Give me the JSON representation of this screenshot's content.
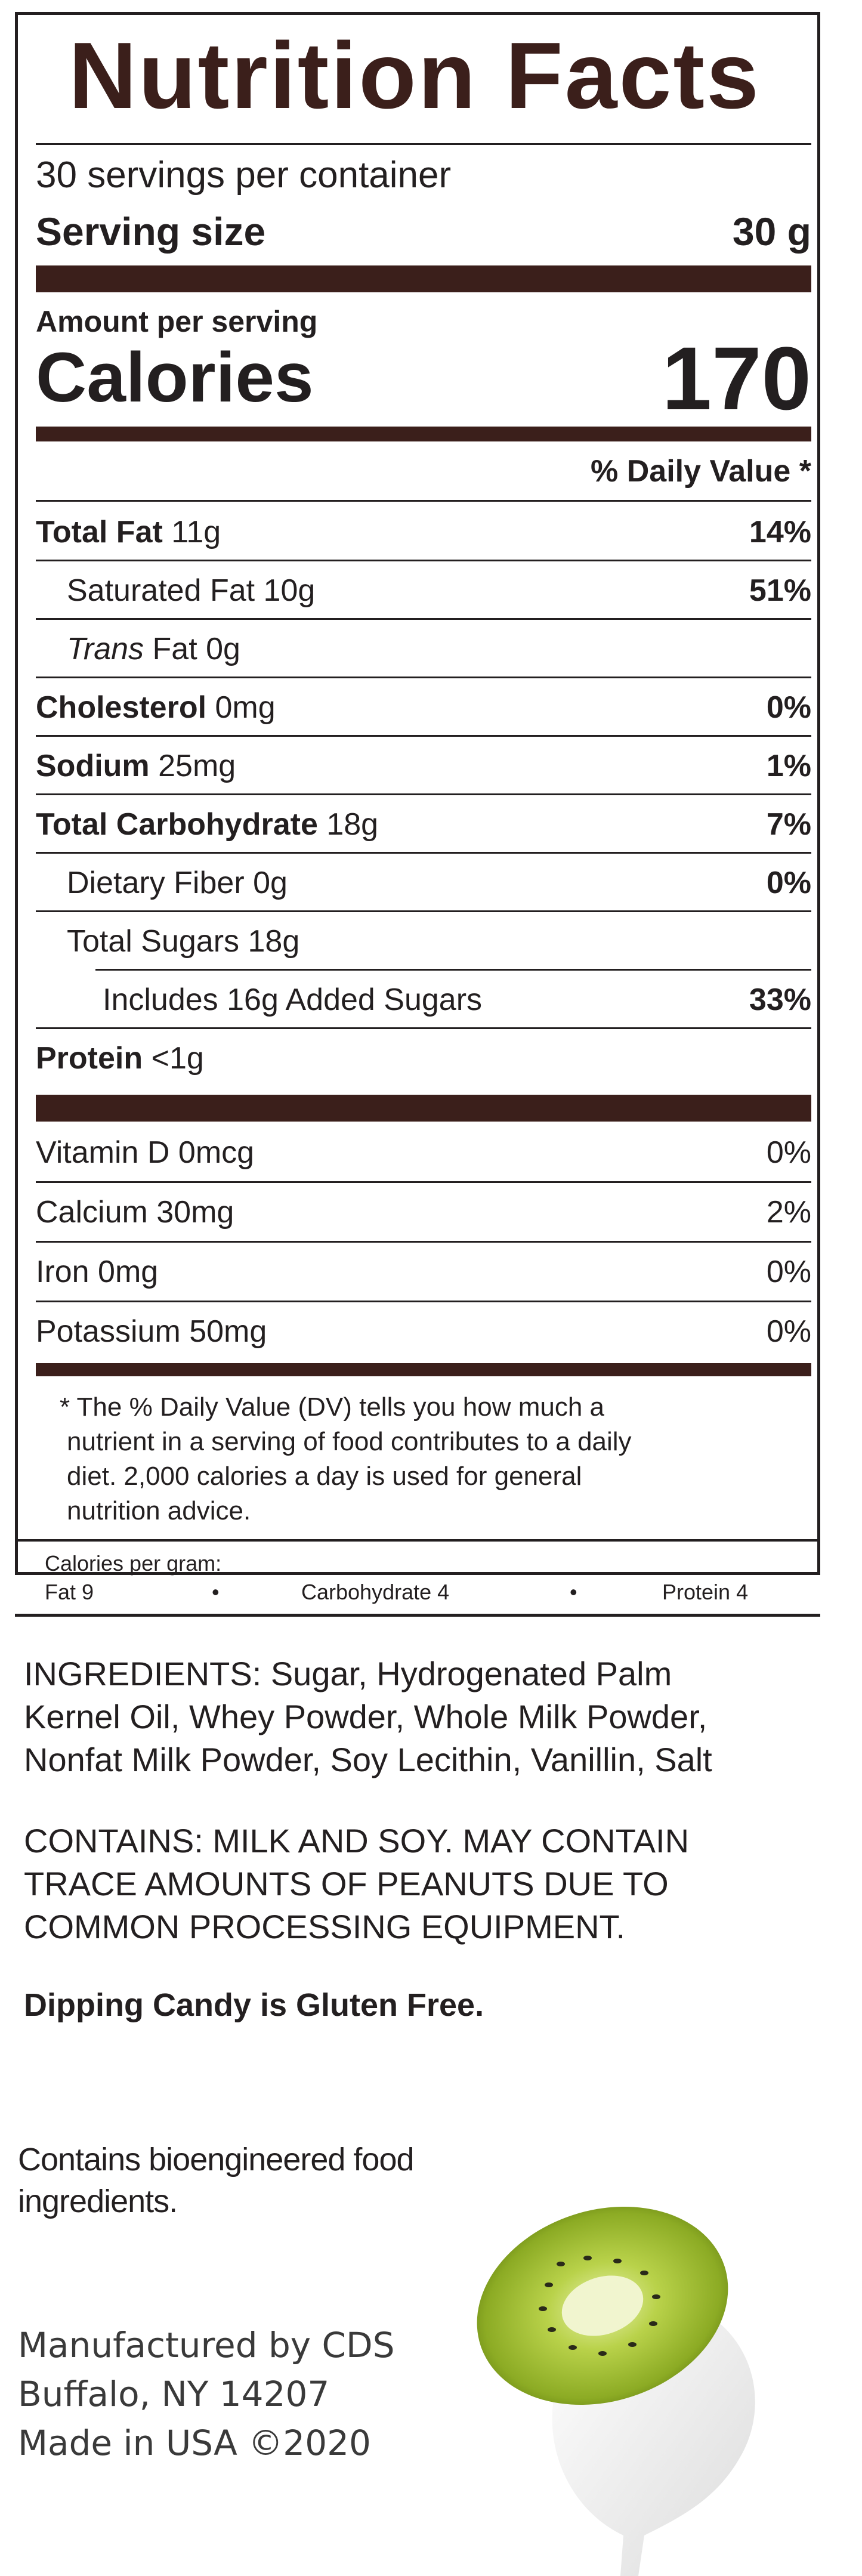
{
  "panel": {
    "title": "Nutrition Facts",
    "servings_per_container": "30 servings per container",
    "serving_size_label": "Serving size",
    "serving_size_value": "30 g",
    "amount_per_serving": "Amount per serving",
    "calories_label": "Calories",
    "calories_value": "170",
    "daily_value_header": "% Daily Value *",
    "nutrients": [
      {
        "label": "Total Fat",
        "amount": "11g",
        "dv": "14%"
      },
      {
        "label": "Saturated Fat",
        "amount": "10g",
        "dv": "51%"
      },
      {
        "label": "Trans",
        "label_rest": "Fat 0g",
        "dv": ""
      },
      {
        "label": "Cholesterol",
        "amount": "0mg",
        "dv": "0%"
      },
      {
        "label": "Sodium",
        "amount": "25mg",
        "dv": "1%"
      },
      {
        "label": "Total Carbohydrate",
        "amount": "18g",
        "dv": "7%"
      },
      {
        "label": "Dietary Fiber",
        "amount": "0g",
        "dv": "0%"
      },
      {
        "label": "Total Sugars",
        "amount": "18g",
        "dv": ""
      },
      {
        "label": "Includes 16g Added Sugars",
        "dv": "33%"
      },
      {
        "label": "Protein",
        "amount": "<1g",
        "dv": ""
      }
    ],
    "vitamins": [
      {
        "label": "Vitamin D 0mcg",
        "dv": "0%"
      },
      {
        "label": "Calcium 30mg",
        "dv": "2%"
      },
      {
        "label": "Iron 0mg",
        "dv": "0%"
      },
      {
        "label": "Potassium 50mg",
        "dv": "0%"
      }
    ],
    "footnote_lines": [
      "* The % Daily Value (DV) tells you how much a",
      "nutrient in a serving of food contributes to a daily",
      "diet. 2,000 calories a day is used for general",
      "nutrition advice."
    ],
    "calories_per_gram": {
      "label": "Calories per gram:",
      "fat": "Fat 9",
      "carb": "Carbohydrate 4",
      "protein": "Protein 4",
      "bullet": "•"
    }
  },
  "ingredients_lines": [
    "INGREDIENTS: Sugar, Hydrogenated Palm",
    "Kernel Oil, Whey Powder, Whole Milk Powder,",
    "Nonfat Milk Powder, Soy Lecithin, Vanillin, Salt"
  ],
  "contains_lines": [
    "CONTAINS: MILK AND SOY. MAY CONTAIN",
    "TRACE AMOUNTS OF PEANUTS DUE TO",
    "COMMON PROCESSING EQUIPMENT."
  ],
  "gluten_free": "Dipping Candy is Gluten Free.",
  "bioengineered_lines": [
    "Contains bioengineered food",
    "ingredients."
  ],
  "manufacturer_lines": [
    "Manufactured by CDS",
    "Buffalo, NY 14207",
    "Made in USA ©2020"
  ],
  "colors": {
    "brand_brown": "#3b1f1b",
    "text": "#231f20",
    "kiwi_green": "#a4c43a",
    "dip_white": "#f2f2f2"
  }
}
